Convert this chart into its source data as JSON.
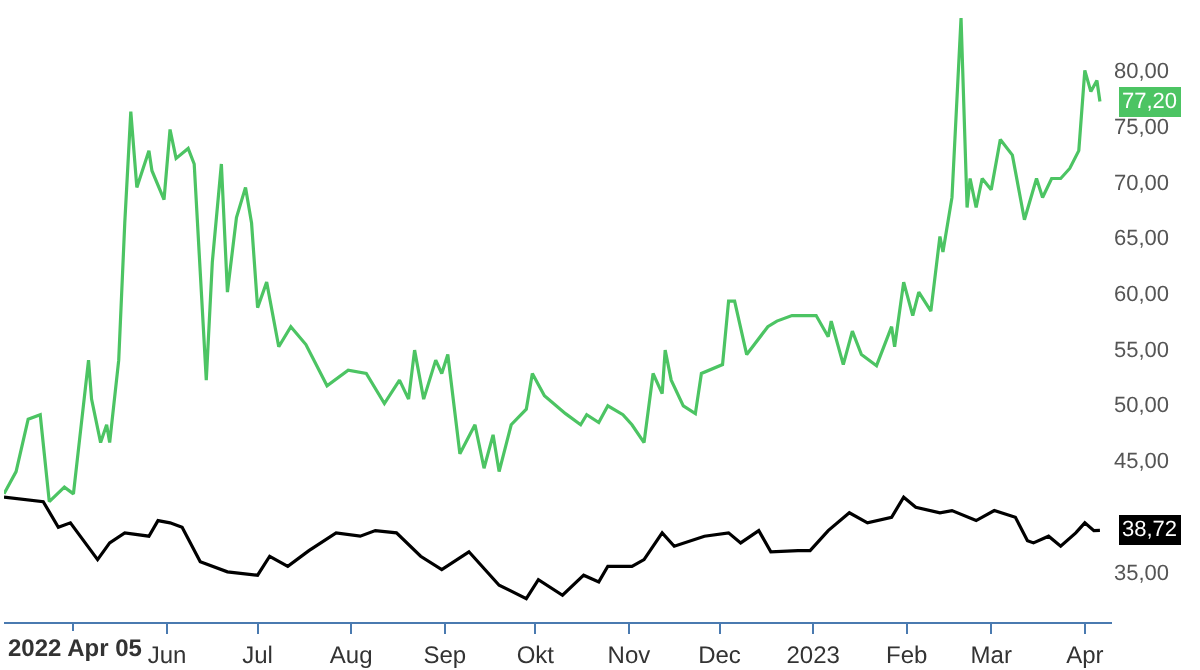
{
  "chart_data": {
    "type": "line",
    "grid": false,
    "marker": "none",
    "line_style": "solid",
    "xlim": [
      "2022-04-08",
      "2023-04-10"
    ],
    "xticks": [
      {
        "value": "2022-05-01",
        "label": null
      },
      {
        "value": "2022-06-01",
        "label": "Jun"
      },
      {
        "value": "2022-07-01",
        "label": "Jul"
      },
      {
        "value": "2022-08-01",
        "label": "Aug"
      },
      {
        "value": "2022-09-01",
        "label": "Sep"
      },
      {
        "value": "2022-10-01",
        "label": "Okt"
      },
      {
        "value": "2022-11-01",
        "label": "Nov"
      },
      {
        "value": "2022-12-01",
        "label": "Dec"
      },
      {
        "value": "2023-01-01",
        "label": "2023"
      },
      {
        "value": "2023-02-01",
        "label": "Feb"
      },
      {
        "value": "2023-03-01",
        "label": "Mar"
      },
      {
        "value": "2023-04-01",
        "label": "Apr"
      }
    ],
    "ylim": [
      30.5,
      85.6
    ],
    "yticks": [
      {
        "value": 35,
        "label": "35,00"
      },
      {
        "value": 45,
        "label": "45,00"
      },
      {
        "value": 50,
        "label": "50,00"
      },
      {
        "value": 55,
        "label": "55,00"
      },
      {
        "value": 60,
        "label": "60,00"
      },
      {
        "value": 65,
        "label": "65,00"
      },
      {
        "value": 70,
        "label": "70,00"
      },
      {
        "value": 75,
        "label": "75,00"
      },
      {
        "value": 80,
        "label": "80,00"
      }
    ],
    "series": [
      {
        "color": "#4cc463",
        "x": [
          "2022-04-08",
          "2022-04-12",
          "2022-04-16",
          "2022-04-20",
          "2022-04-23",
          "2022-04-28",
          "2022-05-01",
          "2022-05-06",
          "2022-05-07",
          "2022-05-10",
          "2022-05-12",
          "2022-05-13",
          "2022-05-16",
          "2022-05-18",
          "2022-05-20",
          "2022-05-22",
          "2022-05-26",
          "2022-05-27",
          "2022-05-31",
          "2022-06-02",
          "2022-06-04",
          "2022-06-08",
          "2022-06-10",
          "2022-06-14",
          "2022-06-16",
          "2022-06-19",
          "2022-06-21",
          "2022-06-24",
          "2022-06-27",
          "2022-06-29",
          "2022-07-01",
          "2022-07-04",
          "2022-07-08",
          "2022-07-12",
          "2022-07-17",
          "2022-07-24",
          "2022-07-31",
          "2022-08-06",
          "2022-08-12",
          "2022-08-17",
          "2022-08-20",
          "2022-08-22",
          "2022-08-25",
          "2022-08-29",
          "2022-08-31",
          "2022-09-02",
          "2022-09-06",
          "2022-09-11",
          "2022-09-14",
          "2022-09-17",
          "2022-09-19",
          "2022-09-23",
          "2022-09-28",
          "2022-09-30",
          "2022-10-04",
          "2022-10-11",
          "2022-10-16",
          "2022-10-18",
          "2022-10-22",
          "2022-10-25",
          "2022-10-30",
          "2022-11-02",
          "2022-11-06",
          "2022-11-09",
          "2022-11-12",
          "2022-11-13",
          "2022-11-15",
          "2022-11-19",
          "2022-11-23",
          "2022-11-25",
          "2022-12-02",
          "2022-12-04",
          "2022-12-06",
          "2022-12-10",
          "2022-12-17",
          "2022-12-20",
          "2022-12-25",
          "2023-01-02",
          "2023-01-06",
          "2023-01-07",
          "2023-01-11",
          "2023-01-14",
          "2023-01-17",
          "2023-01-22",
          "2023-01-27",
          "2023-01-28",
          "2023-01-31",
          "2023-02-03",
          "2023-02-05",
          "2023-02-09",
          "2023-02-12",
          "2023-02-13",
          "2023-02-16",
          "2023-02-19",
          "2023-02-21",
          "2023-02-22",
          "2023-02-24",
          "2023-02-26",
          "2023-03-01",
          "2023-03-04",
          "2023-03-08",
          "2023-03-12",
          "2023-03-16",
          "2023-03-18",
          "2023-03-21",
          "2023-03-24",
          "2023-03-27",
          "2023-03-30",
          "2023-04-01",
          "2023-04-03",
          "2023-04-05",
          "2023-04-06"
        ],
        "values": [
          42.0,
          44.0,
          48.7,
          49.1,
          41.3,
          42.6,
          42.0,
          54.0,
          50.5,
          46.6,
          48.2,
          46.6,
          54.0,
          66.3,
          76.3,
          69.5,
          72.8,
          71.0,
          68.4,
          74.7,
          72.1,
          73.0,
          71.6,
          52.2,
          62.8,
          71.6,
          60.1,
          66.8,
          69.5,
          66.3,
          58.7,
          61.0,
          55.2,
          57.0,
          55.4,
          51.7,
          53.1,
          52.8,
          50.1,
          52.2,
          50.5,
          54.9,
          50.5,
          54.0,
          52.8,
          54.5,
          45.6,
          48.2,
          44.3,
          47.3,
          44.0,
          48.2,
          49.6,
          52.8,
          50.8,
          49.2,
          48.2,
          49.1,
          48.4,
          49.9,
          49.1,
          48.2,
          46.6,
          52.8,
          51.0,
          54.9,
          52.2,
          49.9,
          49.2,
          52.8,
          53.6,
          59.3,
          59.3,
          54.5,
          57.0,
          57.5,
          58.0,
          58.0,
          56.1,
          57.5,
          53.6,
          56.6,
          54.5,
          53.5,
          57.0,
          55.2,
          61.0,
          58.0,
          60.1,
          58.4,
          65.1,
          63.7,
          68.6,
          84.7,
          67.7,
          70.3,
          67.7,
          70.3,
          69.3,
          73.8,
          72.4,
          66.6,
          70.3,
          68.6,
          70.3,
          70.3,
          71.2,
          72.8,
          80.0,
          78.1,
          79.1,
          77.2
        ]
      },
      {
        "color": "#000000",
        "x": [
          "2022-04-08",
          "2022-04-21",
          "2022-04-26",
          "2022-04-30",
          "2022-05-09",
          "2022-05-13",
          "2022-05-18",
          "2022-05-26",
          "2022-05-29",
          "2022-06-02",
          "2022-06-06",
          "2022-06-12",
          "2022-06-21",
          "2022-07-01",
          "2022-07-05",
          "2022-07-11",
          "2022-07-18",
          "2022-07-27",
          "2022-08-04",
          "2022-08-09",
          "2022-08-16",
          "2022-08-24",
          "2022-08-31",
          "2022-09-09",
          "2022-09-19",
          "2022-09-28",
          "2022-10-02",
          "2022-10-10",
          "2022-10-17",
          "2022-10-22",
          "2022-10-25",
          "2022-11-02",
          "2022-11-06",
          "2022-11-12",
          "2022-11-16",
          "2022-11-26",
          "2022-12-04",
          "2022-12-08",
          "2022-12-14",
          "2022-12-18",
          "2022-12-27",
          "2022-12-31",
          "2023-01-06",
          "2023-01-13",
          "2023-01-19",
          "2023-01-27",
          "2023-01-31",
          "2023-02-04",
          "2023-02-12",
          "2023-02-16",
          "2023-02-24",
          "2023-03-02",
          "2023-03-09",
          "2023-03-13",
          "2023-03-15",
          "2023-03-20",
          "2023-03-24",
          "2023-03-29",
          "2023-04-01",
          "2023-04-04",
          "2023-04-06"
        ],
        "values": [
          41.7,
          41.3,
          39.0,
          39.4,
          36.1,
          37.6,
          38.5,
          38.2,
          39.6,
          39.4,
          39.0,
          35.9,
          35.0,
          34.7,
          36.4,
          35.5,
          36.9,
          38.5,
          38.2,
          38.7,
          38.5,
          36.4,
          35.2,
          36.8,
          33.8,
          32.6,
          34.3,
          32.9,
          34.7,
          34.1,
          35.5,
          35.5,
          36.1,
          38.5,
          37.3,
          38.2,
          38.5,
          37.6,
          38.7,
          36.8,
          36.9,
          36.9,
          38.7,
          40.3,
          39.4,
          39.9,
          41.7,
          40.8,
          40.3,
          40.5,
          39.6,
          40.5,
          39.9,
          37.8,
          37.6,
          38.2,
          37.3,
          38.5,
          39.4,
          38.7,
          38.72
        ]
      }
    ],
    "annotations": [
      "2022 Apr 05",
      {
        "text": "77,20",
        "x": "2023-04-06",
        "y": 77.2
      },
      {
        "text": "38,72",
        "x": "2023-04-06",
        "y": 38.72
      }
    ]
  }
}
